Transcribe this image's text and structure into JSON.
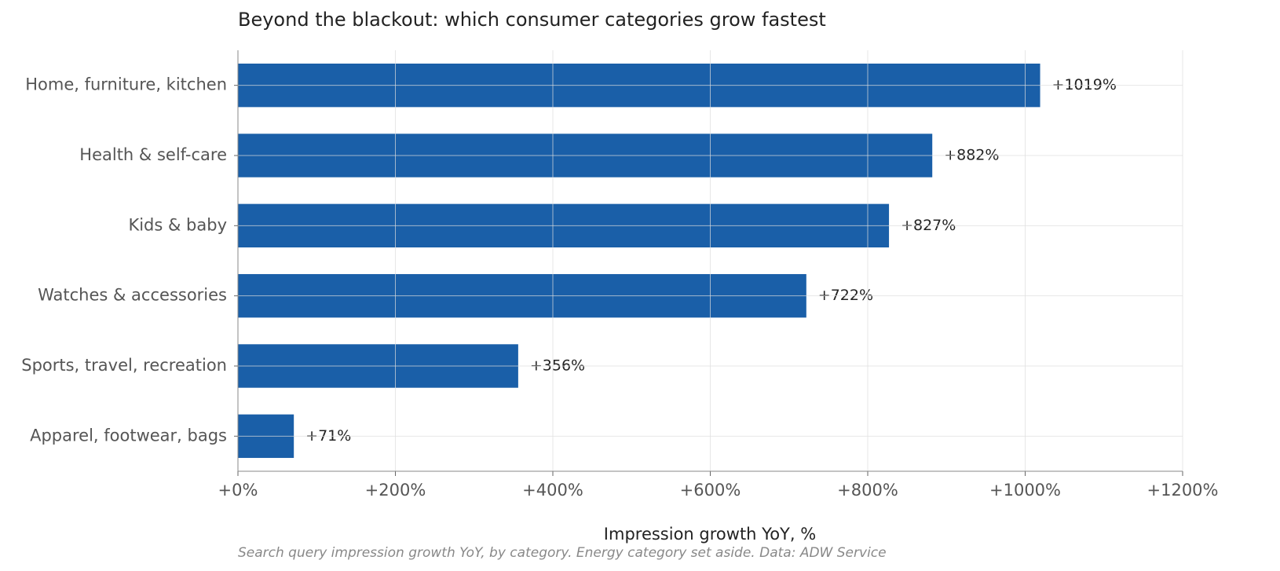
{
  "chart_data": {
    "type": "barh",
    "title": "Beyond the blackout: which consumer categories grow fastest",
    "x_label": "Impression growth YoY, %",
    "caption": "Search query impression growth YoY, by category. Energy category set aside. Data: ADW Service",
    "categories": [
      "Home, furniture, kitchen",
      "Health & self-care",
      "Kids & baby",
      "Watches & accessories",
      "Sports, travel, recreation",
      "Apparel, footwear, bags"
    ],
    "values": [
      1019,
      882,
      827,
      722,
      356,
      71
    ],
    "value_labels": [
      "+1019%",
      "+882%",
      "+827%",
      "+722%",
      "+356%",
      "+71%"
    ],
    "color": "#1a5fa8",
    "xlim": [
      0,
      1200
    ],
    "xticks": [
      {
        "value": 0,
        "label": "+0%"
      },
      {
        "value": 200,
        "label": "+200%"
      },
      {
        "value": 400,
        "label": "+400%"
      },
      {
        "value": 600,
        "label": "+600%"
      },
      {
        "value": 800,
        "label": "+800%"
      },
      {
        "value": 1000,
        "label": "+1000%"
      },
      {
        "value": 1200,
        "label": "+1200%"
      }
    ],
    "grid": true
  }
}
